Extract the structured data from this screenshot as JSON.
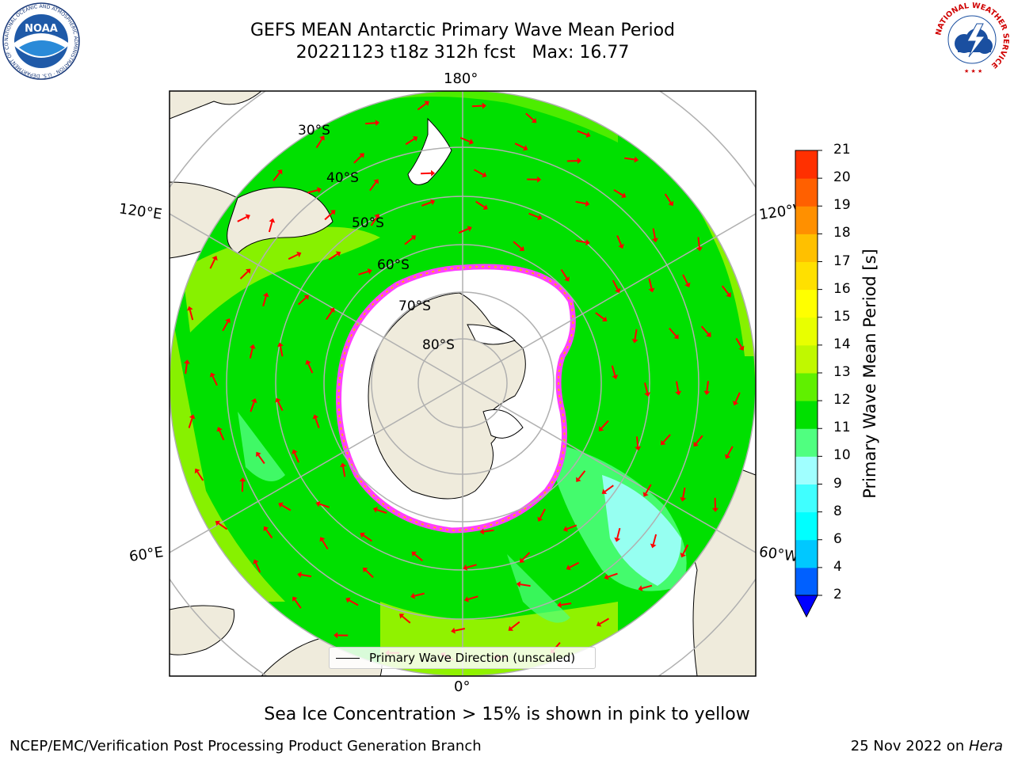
{
  "title": {
    "line1": "GEFS MEAN Antarctic Primary Wave Mean Period",
    "line2": "20221123 t18z 312h fcst   Max: 16.77"
  },
  "map": {
    "projection": "south-polar-stereographic",
    "longitude_labels": {
      "top": "180°",
      "bottom": "0°",
      "upper_left": "120°E",
      "upper_right": "120°W",
      "lower_left": "60°E",
      "lower_right": "60°W"
    },
    "latitude_labels": [
      "30°S",
      "40°S",
      "50°S",
      "60°S",
      "70°S",
      "80°S"
    ],
    "legend": "Primary Wave Direction (unscaled)",
    "colors": {
      "land": "#efebdc",
      "ocean_base": "#00e100",
      "sea_ice_edge": "#ff40ff",
      "arrows": "#ff0000"
    }
  },
  "colorbar": {
    "label": "Primary Wave Mean Period [s]",
    "ticks": [
      "2",
      "4",
      "6",
      "8",
      "9",
      "10",
      "11",
      "12",
      "13",
      "14",
      "15",
      "16",
      "17",
      "18",
      "19",
      "20",
      "21"
    ],
    "colors": [
      "#0060ff",
      "#00c8ff",
      "#00ffff",
      "#40ffff",
      "#a0ffff",
      "#50ff80",
      "#00e000",
      "#60f000",
      "#c0f800",
      "#e8ff00",
      "#ffff00",
      "#ffe000",
      "#ffc000",
      "#ff9000",
      "#ff6000",
      "#ff3000"
    ],
    "extend_min_color": "#0000ff"
  },
  "caption": "Sea Ice Concentration > 15% is shown in pink to yellow",
  "footer": {
    "left": "NCEP/EMC/Verification Post Processing Product Generation Branch",
    "right_date": "25 Nov 2022 on ",
    "right_host": "Hera"
  },
  "logos": {
    "left": {
      "text": "NOAA",
      "ring_text": "NATIONAL OCEANIC AND ATMOSPHERIC ADMINISTRATION · U.S. DEPARTMENT OF COMMERCE"
    },
    "right": {
      "ring_text": "NATIONAL WEATHER SERVICE"
    }
  }
}
